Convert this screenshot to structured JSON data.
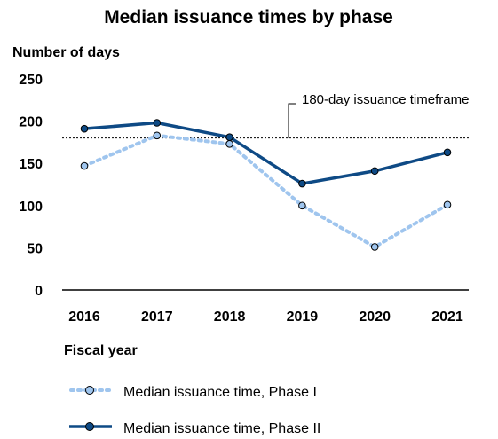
{
  "chart_data": {
    "type": "line",
    "title": "Median issuance times by phase",
    "ylabel": "Number of days",
    "xlabel": "Fiscal year",
    "ylim": [
      0,
      250
    ],
    "yticks": [
      0,
      50,
      100,
      150,
      200,
      250
    ],
    "categories": [
      "2016",
      "2017",
      "2018",
      "2019",
      "2020",
      "2021"
    ],
    "grid": false,
    "legend_position": "bottom",
    "series": [
      {
        "name": "Median issuance time, Phase I",
        "values": [
          147,
          183,
          173,
          100,
          51,
          101
        ],
        "style": "dotted",
        "color": "#9fc5ee"
      },
      {
        "name": "Median issuance time, Phase II",
        "values": [
          191,
          198,
          181,
          126,
          141,
          163
        ],
        "style": "solid",
        "color": "#0e4a85"
      }
    ],
    "reference_line": {
      "value": 180,
      "label": "180-day issuance timeframe"
    }
  },
  "colors": {
    "phase1": "#9fc5ee",
    "phase2": "#0e4a85",
    "marker_edge": "#000000"
  }
}
